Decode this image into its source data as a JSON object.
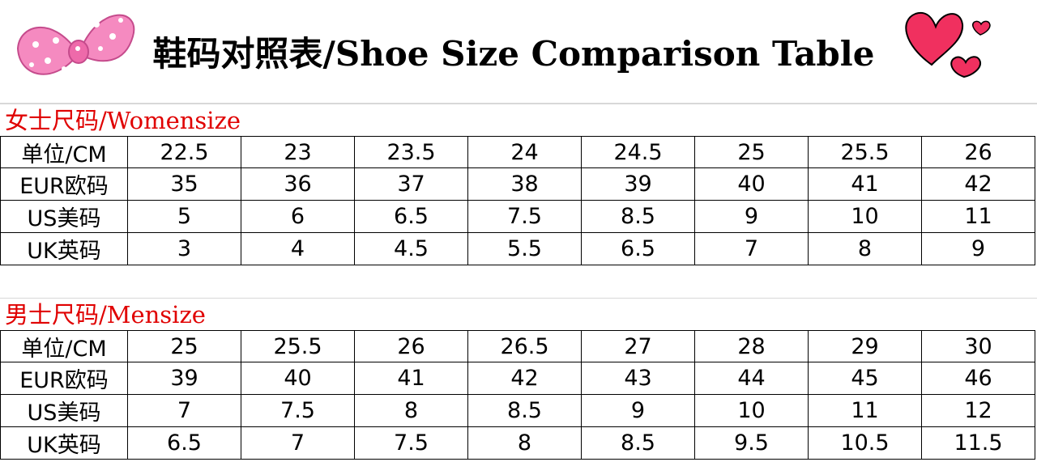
{
  "header": {
    "title": "鞋码对照表/Shoe Size Comparison Table"
  },
  "tables": [
    {
      "title": "女士尺码/Womensize",
      "rows": [
        [
          "单位/CM",
          22.5,
          23,
          23.5,
          24,
          24.5,
          25,
          25.5,
          26
        ],
        [
          "EUR欧码",
          35,
          36,
          37,
          38,
          39,
          40,
          41,
          42
        ],
        [
          "US美码",
          5,
          6,
          6.5,
          7.5,
          8.5,
          9,
          10,
          11
        ],
        [
          "UK英码",
          3,
          4,
          4.5,
          5.5,
          6.5,
          7,
          8,
          9
        ]
      ]
    },
    {
      "title": "男士尺码/Mensize",
      "rows": [
        [
          "单位/CM",
          25,
          25.5,
          26,
          26.5,
          27,
          28,
          29,
          30
        ],
        [
          "EUR欧码",
          39,
          40,
          41,
          42,
          43,
          44,
          45,
          46
        ],
        [
          "US美码",
          7,
          7.5,
          8,
          8.5,
          9,
          10,
          11,
          12
        ],
        [
          "UK英码",
          6.5,
          7,
          7.5,
          8,
          8.5,
          9.5,
          10.5,
          11.5
        ]
      ]
    }
  ]
}
